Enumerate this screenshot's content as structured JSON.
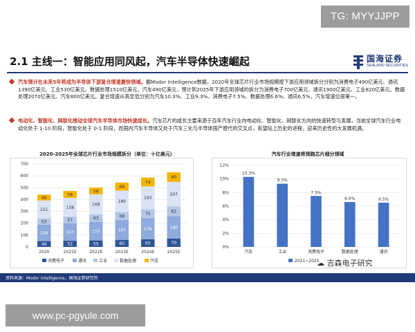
{
  "watermark_top": "TG: MYYJJPP",
  "watermark_bottom": "www.pc-pgyule.com",
  "watermark_mid": "吉森电子研究",
  "header": {
    "title": "2.1 主线一：智能应用同风起，汽车半导体快速崛起",
    "logo_cn": "国海证券",
    "logo_en": "SEALAND SECURITIES"
  },
  "para1": {
    "highlight": "汽车预计在未来5年将成为半导体下游复合增速最快领域。",
    "text": "据Modor Intelligence数据，2020年全球芯片行业市场规模按下游应用领域拆分分别为消费电子490亿美元、通讯1390亿美元、工业530亿美元、数据处理1510亿美元、汽车490亿美元，预计到2025年下游应用领域的拆分为消费电子700亿美元、通讯1900亿美元、工业820亿美元、数据处理2070亿美元、汽车800亿美元。复合增速从高至低分别为汽车10.3%、工业9.3%、消费电子7.5%、数据处理6.6%、通讯6.5%，汽车增速位居第一。"
  },
  "para2": {
    "highlight": "电动化、智能化、网联化推动全球汽车半导体市场快速成长。",
    "text": "汽车芯片的成长主要来源于百年汽车行业向电动化、智能化、网联化方向的快速转型与发展，当前全球汽车行业电动化处于 1-10 阶段，智能化处于 0-1 阶段，而国内汽车半导体又处于汽车三化与半导体国产替代的交叉点，有望站上历史的进程，迎来历史性的大发展机遇。"
  },
  "chart1_title": "2020-2025年全球芯片行业市场规模拆分（单位：十亿美元）",
  "chart2_title": "汽车行业增速将领跑芯片细分领域",
  "footer_text": "资料来源：Modor Intelligence，国海证券研究所",
  "chart_data": [
    {
      "type": "bar",
      "stacked": true,
      "categories": [
        "2020",
        "2021E",
        "2022E",
        "2023E",
        "2024E",
        "2025E"
      ],
      "series": [
        {
          "name": "消费电子",
          "color": "#2f5597",
          "values": [
            49,
            52,
            55,
            60,
            65,
            70
          ]
        },
        {
          "name": "通讯",
          "color": "#8faadc",
          "values": [
            139,
            147,
            157,
            167,
            178,
            190
          ]
        },
        {
          "name": "工业",
          "color": "#b4c7e7",
          "values": [
            53,
            57,
            63,
            68,
            75,
            82
          ]
        },
        {
          "name": "数据处理",
          "color": "#dae3f3",
          "values": [
            151,
            158,
            168,
            180,
            193,
            207
          ]
        },
        {
          "name": "汽车",
          "color": "#f4b400",
          "values": [
            49,
            58,
            58,
            68,
            74,
            80
          ]
        }
      ],
      "ylim": [
        0,
        700
      ],
      "yticks": [
        0,
        100,
        200,
        300,
        400,
        500,
        600,
        700
      ],
      "legend_position": "bottom",
      "grid": true
    },
    {
      "type": "bar",
      "categories": [
        "汽车",
        "工业",
        "消费电子",
        "数据处理",
        "通讯"
      ],
      "series": [
        {
          "name": "2021~2025",
          "color": "#4472c4",
          "values": [
            10.3,
            9.3,
            7.5,
            6.6,
            6.5
          ]
        }
      ],
      "data_labels": [
        "10.3%",
        "9.3%",
        "7.5%",
        "6.6%",
        "6.5%"
      ],
      "ylim": [
        0,
        12
      ],
      "yticks": [
        "0%",
        "2%",
        "4%",
        "6%",
        "8%",
        "10%",
        "12%"
      ],
      "legend_position": "bottom",
      "grid": true
    }
  ]
}
